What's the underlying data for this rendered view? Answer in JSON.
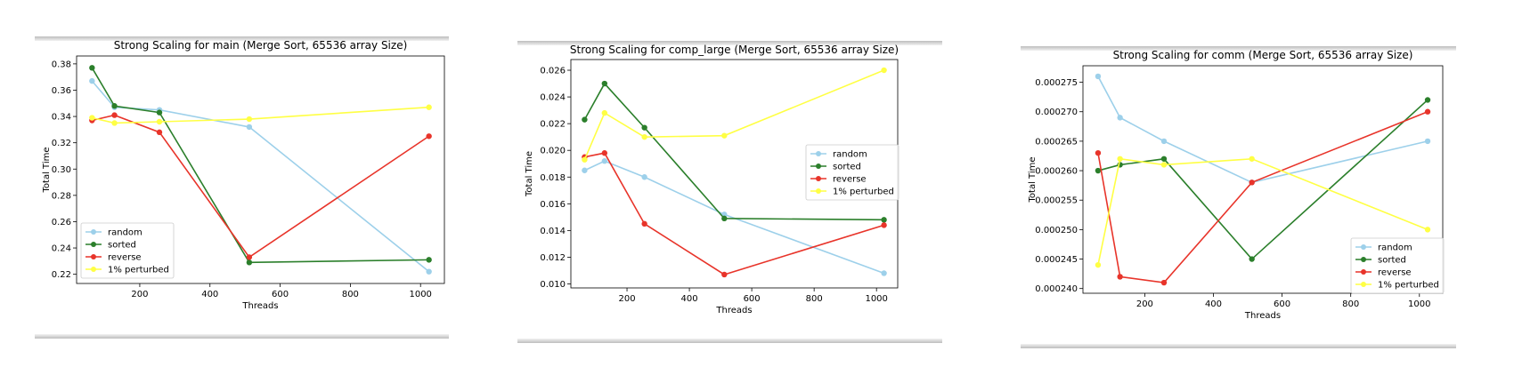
{
  "chart_data": [
    {
      "type": "line",
      "title": "Strong Scaling for main (Merge Sort, 65536 array Size)",
      "xlabel": "Threads",
      "ylabel": "Total Time",
      "x": [
        64,
        128,
        256,
        512,
        1024
      ],
      "xlim": [
        20,
        1068
      ],
      "ylim": [
        0.213,
        0.386
      ],
      "xticks": [
        200,
        400,
        600,
        800,
        1000
      ],
      "yticks": [
        0.22,
        0.24,
        0.26,
        0.28,
        0.3,
        0.32,
        0.34,
        0.36,
        0.38
      ],
      "ytick_labels": [
        "0.22",
        "0.24",
        "0.26",
        "0.28",
        "0.30",
        "0.32",
        "0.34",
        "0.36",
        "0.38"
      ],
      "legend_position": "lower-left",
      "grid": false,
      "series": [
        {
          "name": "random",
          "color": "#9dd0ea",
          "values": [
            0.367,
            0.347,
            0.345,
            0.332,
            0.222
          ]
        },
        {
          "name": "sorted",
          "color": "#2b7f2b",
          "values": [
            0.377,
            0.348,
            0.343,
            0.229,
            0.231
          ]
        },
        {
          "name": "reverse",
          "color": "#e8342a",
          "values": [
            0.337,
            0.341,
            0.328,
            0.233,
            0.325
          ]
        },
        {
          "name": "1% perturbed",
          "color": "#ffff44",
          "values": [
            0.339,
            0.335,
            0.336,
            0.338,
            0.347
          ]
        }
      ]
    },
    {
      "type": "line",
      "title": "Strong Scaling for comp_large (Merge Sort, 65536 array Size)",
      "xlabel": "Threads",
      "ylabel": "Total Time",
      "x": [
        64,
        128,
        256,
        512,
        1024
      ],
      "xlim": [
        20,
        1068
      ],
      "ylim": [
        0.0097,
        0.0268
      ],
      "xticks": [
        200,
        400,
        600,
        800,
        1000
      ],
      "yticks": [
        0.01,
        0.012,
        0.014,
        0.016,
        0.018,
        0.02,
        0.022,
        0.024,
        0.026
      ],
      "ytick_labels": [
        "0.010",
        "0.012",
        "0.014",
        "0.016",
        "0.018",
        "0.020",
        "0.022",
        "0.024",
        "0.026"
      ],
      "legend_position": "center-right",
      "grid": false,
      "series": [
        {
          "name": "random",
          "color": "#9dd0ea",
          "values": [
            0.0185,
            0.0192,
            0.018,
            0.0152,
            0.0108
          ]
        },
        {
          "name": "sorted",
          "color": "#2b7f2b",
          "values": [
            0.0223,
            0.025,
            0.0217,
            0.0149,
            0.0148
          ]
        },
        {
          "name": "reverse",
          "color": "#e8342a",
          "values": [
            0.0195,
            0.0198,
            0.0145,
            0.0107,
            0.0144
          ]
        },
        {
          "name": "1% perturbed",
          "color": "#ffff44",
          "values": [
            0.0193,
            0.0228,
            0.021,
            0.0211,
            0.026
          ]
        }
      ]
    },
    {
      "type": "line",
      "title": "Strong Scaling for comm (Merge Sort, 65536 array Size)",
      "xlabel": "Threads",
      "ylabel": "Total Time",
      "x": [
        64,
        128,
        256,
        512,
        1024
      ],
      "xlim": [
        20,
        1068
      ],
      "ylim": [
        0.0002392,
        0.0002778
      ],
      "xticks": [
        200,
        400,
        600,
        800,
        1000
      ],
      "yticks": [
        0.00024,
        0.000245,
        0.00025,
        0.000255,
        0.00026,
        0.000265,
        0.00027,
        0.000275
      ],
      "ytick_labels": [
        "0.000240",
        "0.000245",
        "0.000250",
        "0.000255",
        "0.000260",
        "0.000265",
        "0.000270",
        "0.000275"
      ],
      "legend_position": "lower-right",
      "grid": false,
      "series": [
        {
          "name": "random",
          "color": "#9dd0ea",
          "values": [
            0.000276,
            0.000269,
            0.000265,
            0.000258,
            0.000265
          ]
        },
        {
          "name": "sorted",
          "color": "#2b7f2b",
          "values": [
            0.00026,
            0.000261,
            0.000262,
            0.000245,
            0.000272
          ]
        },
        {
          "name": "reverse",
          "color": "#e8342a",
          "values": [
            0.000263,
            0.000242,
            0.000241,
            0.000258,
            0.00027
          ]
        },
        {
          "name": "1% perturbed",
          "color": "#ffff44",
          "values": [
            0.000244,
            0.000262,
            0.000261,
            0.000262,
            0.00025
          ]
        }
      ]
    }
  ]
}
